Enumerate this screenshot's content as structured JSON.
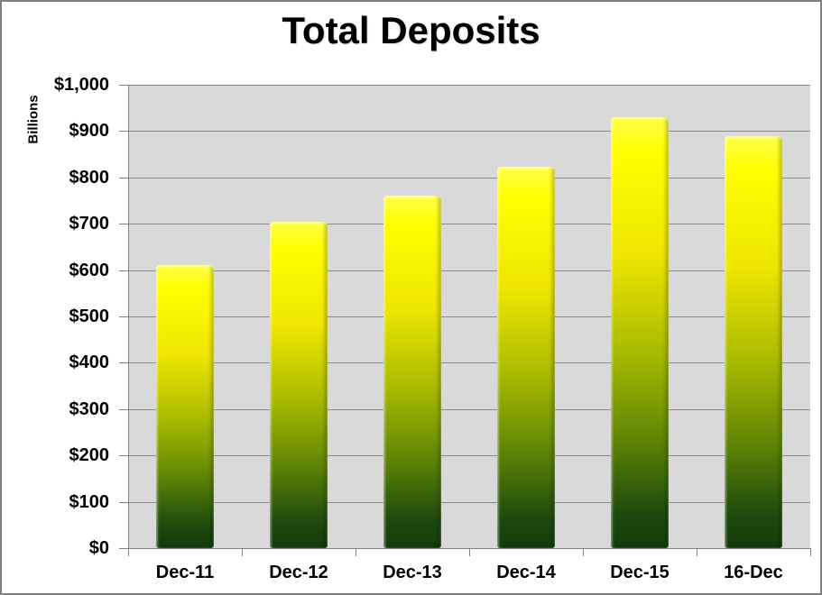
{
  "chart_data": {
    "type": "bar",
    "title": "Total Deposits",
    "ylabel": "Billions",
    "xlabel": "",
    "categories": [
      "Dec-11",
      "Dec-12",
      "Dec-13",
      "Dec-14",
      "Dec-15",
      "16-Dec"
    ],
    "values": [
      610,
      705,
      760,
      823,
      930,
      890
    ],
    "ylim": [
      0,
      1000
    ],
    "ytick_step": 100,
    "ytick_labels": [
      "$1,000",
      "$900",
      "$800",
      "$700",
      "$600",
      "$500",
      "$400",
      "$300",
      "$200",
      "$100",
      "$0"
    ],
    "grid": "horizontal",
    "legend": "none",
    "colors": {
      "bar_gradient_top": "#ffff00",
      "bar_gradient_bottom": "#123c0c",
      "plot_background": "#d9d9d9",
      "gridline": "#8a8a8a",
      "axis": "#808080",
      "text": "#000000",
      "page_background": "#ffffff",
      "page_border": "#808080"
    }
  }
}
